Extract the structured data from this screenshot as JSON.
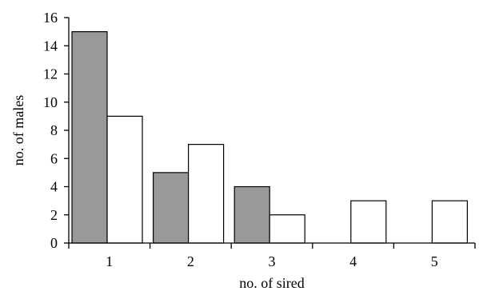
{
  "chart_data": {
    "type": "bar",
    "title": "",
    "xlabel": "no. of sired",
    "ylabel": "no. of males",
    "categories": [
      "1",
      "2",
      "3",
      "4",
      "5"
    ],
    "series": [
      {
        "values": [
          15,
          5,
          4,
          0,
          0
        ],
        "color": "#999999"
      },
      {
        "values": [
          9,
          7,
          2,
          3,
          3
        ],
        "color": "#ffffff"
      }
    ],
    "ylim": [
      0,
      16
    ],
    "yticks": [
      0,
      2,
      4,
      6,
      8,
      10,
      12,
      14,
      16
    ],
    "grid": false,
    "legend": "none"
  }
}
